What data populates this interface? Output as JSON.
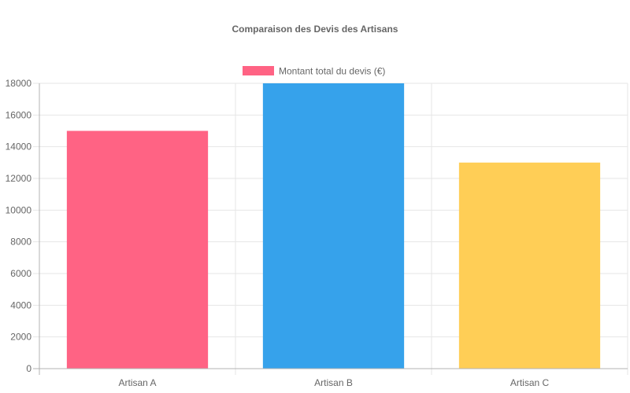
{
  "chart_data": {
    "type": "bar",
    "title": "Comparaison des Devis des Artisans",
    "categories": [
      "Artisan A",
      "Artisan B",
      "Artisan C"
    ],
    "series": [
      {
        "name": "Montant total du devis (€)",
        "values": [
          15000,
          18000,
          13000
        ],
        "colors": [
          "#ff6384",
          "#36a2eb",
          "#ffce56"
        ]
      }
    ],
    "ylim": [
      0,
      18000
    ],
    "yticks": [
      0,
      2000,
      4000,
      6000,
      8000,
      10000,
      12000,
      14000,
      16000,
      18000
    ],
    "grid": true,
    "legend_position": "top"
  }
}
